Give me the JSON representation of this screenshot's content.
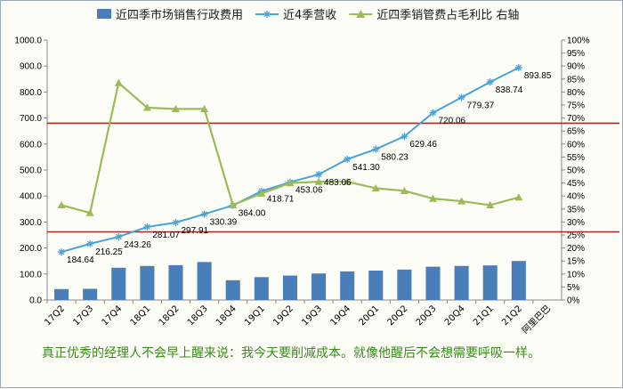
{
  "chart_data": {
    "type": "bar",
    "categories": [
      "17Q2",
      "17Q3",
      "17Q4",
      "18Q1",
      "18Q2",
      "18Q3",
      "18Q4",
      "19Q1",
      "19Q2",
      "19Q3",
      "19Q4",
      "20Q1",
      "20Q2",
      "20Q3",
      "20Q4",
      "21Q1",
      "21Q2"
    ],
    "extra_category": "阿里巴巴",
    "left_axis": {
      "min": 0,
      "max": 1000,
      "step": 100,
      "tick_format": "0.0"
    },
    "right_axis": {
      "min": 0,
      "max": 100,
      "step": 5,
      "unit": "%"
    },
    "series": [
      {
        "name": "近四季市场销售行政费用",
        "kind": "bar",
        "axis": "left",
        "color": "#4a7ebb",
        "values": [
          42,
          43,
          124,
          131,
          134,
          146,
          76,
          88,
          94,
          102,
          110,
          113,
          117,
          128,
          131,
          133,
          150
        ]
      },
      {
        "name": "近4季营收",
        "kind": "line",
        "axis": "left",
        "color": "#4aa3d8",
        "marker": "asterisk",
        "values": [
          184.64,
          216.25,
          243.26,
          281.07,
          297.91,
          330.39,
          364.0,
          418.71,
          453.06,
          483.06,
          541.3,
          580.23,
          629.46,
          720.06,
          779.37,
          838.74,
          893.85
        ],
        "labels": [
          "184.64",
          "216.25",
          "243.26",
          "281.07",
          "297.91",
          "330.39",
          "364.00",
          "418.71",
          "453.06",
          "483.06",
          "541.30",
          "580.23",
          "629.46",
          "720.06",
          "779.37",
          "838.74",
          "893.85"
        ]
      },
      {
        "name": "近四季销管费占毛利比 右轴",
        "kind": "line",
        "axis": "right",
        "color": "#9bbb59",
        "marker": "triangle",
        "values": [
          36.5,
          33.5,
          83.5,
          74,
          73.5,
          73.5,
          36.5,
          41,
          45,
          45.5,
          45.5,
          43,
          42,
          39,
          38,
          36.5,
          39.5
        ]
      }
    ],
    "reference_lines": [
      {
        "axis": "left",
        "value": 680,
        "color": "#a52a2a"
      },
      {
        "axis": "left",
        "value": 262,
        "color": "#a52a2a"
      }
    ],
    "grid": false,
    "legend_position": "top"
  },
  "caption": "真正优秀的经理人不会早上醒来说：我今天要削减成本。就像他醒后不会想需要呼吸一样。"
}
